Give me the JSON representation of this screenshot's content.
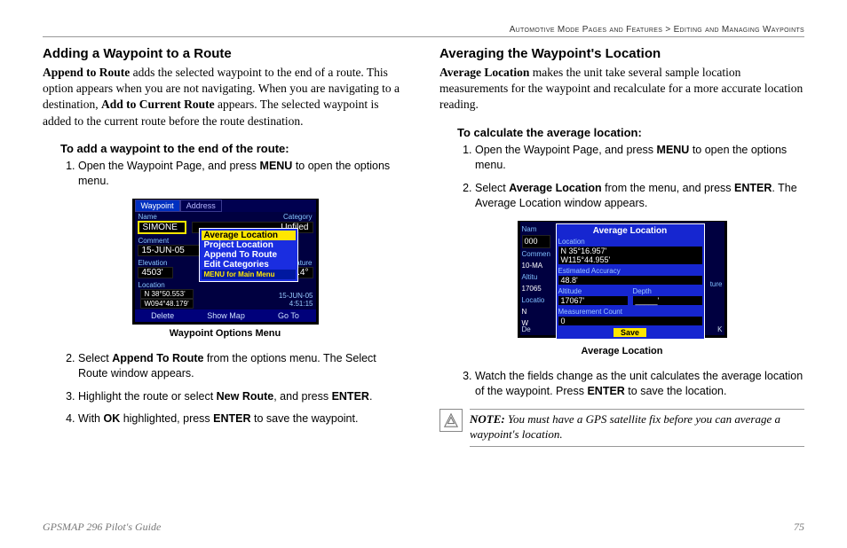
{
  "breadcrumb": {
    "path": "Automotive Mode Pages and Features",
    "sep": ">",
    "leaf": "Editing and Managing Waypoints"
  },
  "left": {
    "title": "Adding a Waypoint to a Route",
    "intro_html": "<b>Append to Route</b> adds the selected waypoint to the end of a route. This option appears when you are not navigating. When you are navigating to a destination, <b>Add to Current Route</b> appears. The selected waypoint is added to the current route before the route destination.",
    "subhead": "To add a waypoint to the end of the route:",
    "steps": [
      "Open the Waypoint Page, and press <b>MENU</b> to open the options menu.",
      "Select <b>Append To Route</b> from the options menu. The Select Route window appears.",
      "Highlight the route or select <b>New Route</b>, and press <b>ENTER</b>.",
      "With <b>OK</b> highlighted, press <b>ENTER</b> to save the waypoint."
    ],
    "fig_caption": "Waypoint Options Menu",
    "device": {
      "tabs": [
        "Waypoint",
        "Address"
      ],
      "name_label": "Name",
      "name_val": "SIMONE",
      "cat_label": "Category",
      "cat_val": "Unfiled",
      "comment_label": "Comment",
      "comment_val": "15-JUN-05",
      "elev_label": "Elevation",
      "elev_val": "4503'",
      "temp_label": "emperature",
      "temp_val": "'1.4°",
      "loc_label": "Location",
      "loc_val1": "N  38°50.553'",
      "loc_val2": "W094°48.179'",
      "date_val1": "15-JUN-05",
      "date_val2": "4:51:15",
      "menu": [
        "Average Location",
        "Project Location",
        "Append To Route",
        "Edit Categories"
      ],
      "menu_sub": "MENU for Main Menu",
      "buttons": [
        "Delete",
        "Show Map",
        "Go To"
      ]
    }
  },
  "right": {
    "title": "Averaging the Waypoint's Location",
    "intro_html": "<b>Average Location</b> makes the unit take several sample location measurements for the waypoint and recalculate for a more accurate location reading.",
    "subhead": "To calculate the average location:",
    "steps": [
      "Open the Waypoint Page, and press <b>MENU</b> to open the options menu.",
      "Select <b>Average Location</b> from the menu, and press <b>ENTER</b>. The Average Location window appears.",
      "Watch the fields change as the unit calculates the average location of the waypoint. Press <b>ENTER</b> to save the location."
    ],
    "fig_caption": "Average Location",
    "device": {
      "side_labels": [
        "Nam",
        "Commen",
        "10-MA",
        "Altitu",
        "17065",
        "Locatio",
        "N",
        "W",
        "De"
      ],
      "side_val": "000",
      "title": "Average Location",
      "loc_label": "Location",
      "loc_val1": "N  35°16.957'",
      "loc_val2": "W115°44.955'",
      "acc_label": "Estimated Accuracy",
      "acc_val": "48.8'",
      "alt_label": "Altitude",
      "alt_val": "17067'",
      "depth_label": "Depth",
      "depth_val": "_____'",
      "count_label": "Measurement Count",
      "count_val": "0",
      "save": "Save",
      "right_cut": "ture",
      "right_cut2": "K"
    },
    "note": "NOTE: You must have a GPS satellite fix before you can average a waypoint's location."
  },
  "footer": {
    "guide": "GPSMAP 296 Pilot's Guide",
    "page": "75"
  }
}
